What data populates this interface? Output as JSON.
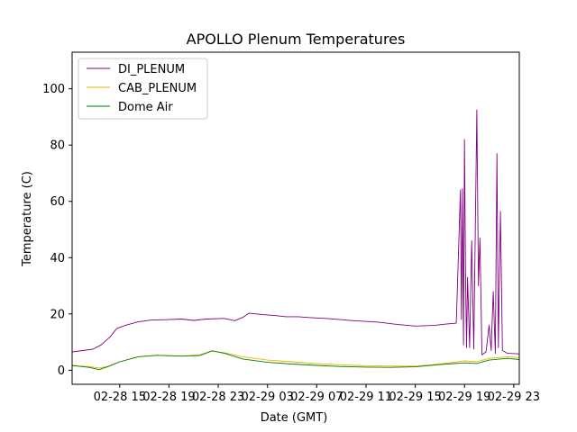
{
  "chart_data": {
    "type": "line",
    "title": "APOLLO Plenum Temperatures",
    "xlabel": "Date (GMT)",
    "ylabel": "Temperature (C)",
    "xlim": [
      "2016-02-28 11:08",
      "2016-02-29 23:27"
    ],
    "ylim": [
      -5,
      113
    ],
    "x_ticks": [
      {
        "t": "2016-02-28 15:00",
        "label": "02-28 15"
      },
      {
        "t": "2016-02-28 19:00",
        "label": "02-28 19"
      },
      {
        "t": "2016-02-28 23:00",
        "label": "02-28 23"
      },
      {
        "t": "2016-02-29 03:00",
        "label": "02-29 03"
      },
      {
        "t": "2016-02-29 07:00",
        "label": "02-29 07"
      },
      {
        "t": "2016-02-29 11:00",
        "label": "02-29 11"
      },
      {
        "t": "2016-02-29 15:00",
        "label": "02-29 15"
      },
      {
        "t": "2016-02-29 19:00",
        "label": "02-29 19"
      },
      {
        "t": "2016-02-29 23:00",
        "label": "02-29 23"
      }
    ],
    "y_ticks": [
      0,
      20,
      40,
      60,
      80,
      100
    ],
    "legend": "top-left",
    "grid": false,
    "series": [
      {
        "name": "DI_PLENUM",
        "color": "#800080",
        "points": [
          [
            "2016-02-28 11:08",
            6.5
          ],
          [
            "2016-02-28 12:00",
            7.0
          ],
          [
            "2016-02-28 12:50",
            7.5
          ],
          [
            "2016-02-28 13:30",
            9.0
          ],
          [
            "2016-02-28 14:15",
            12.0
          ],
          [
            "2016-02-28 14:45",
            14.8
          ],
          [
            "2016-02-28 15:30",
            16.0
          ],
          [
            "2016-02-28 16:30",
            17.2
          ],
          [
            "2016-02-28 17:30",
            17.8
          ],
          [
            "2016-02-28 19:00",
            18.0
          ],
          [
            "2016-02-28 20:00",
            18.2
          ],
          [
            "2016-02-28 21:00",
            17.7
          ],
          [
            "2016-02-28 22:00",
            18.2
          ],
          [
            "2016-02-28 23:30",
            18.4
          ],
          [
            "2016-02-29 00:20",
            17.6
          ],
          [
            "2016-02-29 01:00",
            18.8
          ],
          [
            "2016-02-29 01:30",
            20.3
          ],
          [
            "2016-02-29 02:30",
            19.8
          ],
          [
            "2016-02-29 03:30",
            19.5
          ],
          [
            "2016-02-29 04:30",
            19.0
          ],
          [
            "2016-02-29 05:30",
            19.0
          ],
          [
            "2016-02-29 06:30",
            18.7
          ],
          [
            "2016-02-29 08:00",
            18.3
          ],
          [
            "2016-02-29 10:00",
            17.6
          ],
          [
            "2016-02-29 12:00",
            17.1
          ],
          [
            "2016-02-29 13:30",
            16.3
          ],
          [
            "2016-02-29 15:00",
            15.7
          ],
          [
            "2016-02-29 16:30",
            15.9
          ],
          [
            "2016-02-29 17:30",
            16.4
          ],
          [
            "2016-02-29 18:20",
            16.7
          ],
          [
            "2016-02-29 18:40",
            64.0
          ],
          [
            "2016-02-29 18:45",
            18.0
          ],
          [
            "2016-02-29 18:50",
            64.5
          ],
          [
            "2016-02-29 18:55",
            9.0
          ],
          [
            "2016-02-29 19:00",
            82.0
          ],
          [
            "2016-02-29 19:05",
            33.0
          ],
          [
            "2016-02-29 19:10",
            8.0
          ],
          [
            "2016-02-29 19:15",
            33.0
          ],
          [
            "2016-02-29 19:25",
            8.0
          ],
          [
            "2016-02-29 19:35",
            46.0
          ],
          [
            "2016-02-29 19:45",
            7.5
          ],
          [
            "2016-02-29 20:00",
            92.5
          ],
          [
            "2016-02-29 20:08",
            30.0
          ],
          [
            "2016-02-29 20:15",
            47.0
          ],
          [
            "2016-02-29 20:25",
            5.5
          ],
          [
            "2016-02-29 20:45",
            6.5
          ],
          [
            "2016-02-29 21:00",
            16.0
          ],
          [
            "2016-02-29 21:10",
            7.0
          ],
          [
            "2016-02-29 21:20",
            28.0
          ],
          [
            "2016-02-29 21:30",
            6.0
          ],
          [
            "2016-02-29 21:38",
            77.0
          ],
          [
            "2016-02-29 21:45",
            8.0
          ],
          [
            "2016-02-29 21:55",
            56.5
          ],
          [
            "2016-02-29 22:05",
            7.0
          ],
          [
            "2016-02-29 22:30",
            6.0
          ],
          [
            "2016-02-29 23:27",
            5.8
          ]
        ]
      },
      {
        "name": "CAB_PLENUM",
        "color": "#e6b400",
        "points": [
          [
            "2016-02-28 11:08",
            1.6
          ],
          [
            "2016-02-28 12:30",
            1.3
          ],
          [
            "2016-02-28 13:20",
            0.8
          ],
          [
            "2016-02-28 14:00",
            1.3
          ],
          [
            "2016-02-28 15:00",
            3.0
          ],
          [
            "2016-02-28 16:30",
            4.8
          ],
          [
            "2016-02-28 18:00",
            5.3
          ],
          [
            "2016-02-28 20:00",
            5.0
          ],
          [
            "2016-02-28 21:30",
            5.5
          ],
          [
            "2016-02-28 22:30",
            6.8
          ],
          [
            "2016-02-28 23:30",
            6.2
          ],
          [
            "2016-02-29 01:00",
            4.8
          ],
          [
            "2016-02-29 03:00",
            3.6
          ],
          [
            "2016-02-29 05:00",
            3.0
          ],
          [
            "2016-02-29 07:00",
            2.4
          ],
          [
            "2016-02-29 09:00",
            1.9
          ],
          [
            "2016-02-29 11:00",
            1.6
          ],
          [
            "2016-02-29 13:00",
            1.5
          ],
          [
            "2016-02-29 15:00",
            1.4
          ],
          [
            "2016-02-29 17:00",
            2.2
          ],
          [
            "2016-02-29 19:00",
            3.3
          ],
          [
            "2016-02-29 20:00",
            3.0
          ],
          [
            "2016-02-29 21:00",
            4.2
          ],
          [
            "2016-02-29 22:30",
            4.8
          ],
          [
            "2016-02-29 23:27",
            4.5
          ]
        ]
      },
      {
        "name": "Dome Air",
        "color": "#008000",
        "points": [
          [
            "2016-02-28 11:08",
            1.7
          ],
          [
            "2016-02-28 12:30",
            1.0
          ],
          [
            "2016-02-28 13:20",
            0.2
          ],
          [
            "2016-02-28 14:00",
            1.2
          ],
          [
            "2016-02-28 15:00",
            3.0
          ],
          [
            "2016-02-28 16:30",
            4.8
          ],
          [
            "2016-02-28 18:00",
            5.3
          ],
          [
            "2016-02-28 20:00",
            5.0
          ],
          [
            "2016-02-28 21:30",
            5.2
          ],
          [
            "2016-02-28 22:30",
            6.9
          ],
          [
            "2016-02-28 23:30",
            6.0
          ],
          [
            "2016-02-29 01:00",
            4.0
          ],
          [
            "2016-02-29 03:00",
            2.8
          ],
          [
            "2016-02-29 05:00",
            2.2
          ],
          [
            "2016-02-29 07:00",
            1.7
          ],
          [
            "2016-02-29 09:00",
            1.3
          ],
          [
            "2016-02-29 11:00",
            1.1
          ],
          [
            "2016-02-29 13:00",
            1.0
          ],
          [
            "2016-02-29 15:00",
            1.2
          ],
          [
            "2016-02-29 17:00",
            2.0
          ],
          [
            "2016-02-29 19:00",
            2.6
          ],
          [
            "2016-02-29 20:00",
            2.4
          ],
          [
            "2016-02-29 21:00",
            3.6
          ],
          [
            "2016-02-29 22:30",
            4.2
          ],
          [
            "2016-02-29 23:27",
            3.8
          ]
        ]
      }
    ]
  }
}
